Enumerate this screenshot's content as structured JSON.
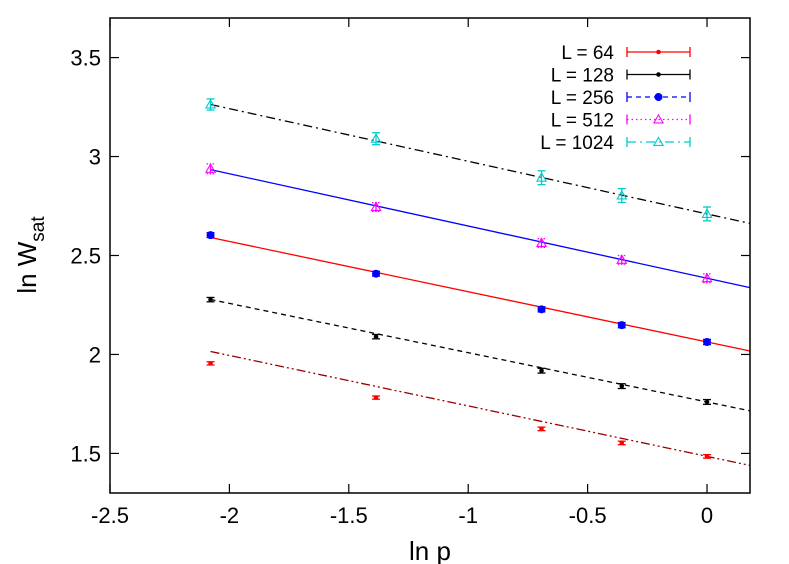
{
  "chart_data": {
    "type": "scatter",
    "xlabel": "ln p",
    "ylabel": {
      "main": "ln W",
      "sub": "sat"
    },
    "xlim": [
      -2.5,
      0.18
    ],
    "ylim": [
      1.3,
      3.7
    ],
    "xticks": [
      -2.5,
      -2,
      -1.5,
      -1,
      -0.5,
      0
    ],
    "xtick_labels": [
      "-2.5",
      "-2",
      "-1.5",
      "-1",
      "-0.5",
      "0"
    ],
    "yticks": [
      1.5,
      2,
      2.5,
      3,
      3.5
    ],
    "ytick_labels": [
      "1.5",
      "2",
      "2.5",
      "3",
      "3.5"
    ],
    "legend_position": "top-right",
    "x": [
      -2.079,
      -1.386,
      -0.693,
      -0.357,
      0.0
    ],
    "series": [
      {
        "name": "L = 64",
        "color": "#ff0000",
        "marker": "small-dot",
        "line": "solid",
        "y": [
          1.955,
          1.782,
          1.624,
          1.553,
          1.485
        ],
        "err": [
          0.008,
          0.008,
          0.009,
          0.009,
          0.009
        ]
      },
      {
        "name": "L = 128",
        "color": "#000000",
        "marker": "small-dot",
        "line": "solid",
        "y": [
          2.277,
          2.09,
          1.918,
          1.84,
          1.76
        ],
        "err": [
          0.011,
          0.011,
          0.012,
          0.012,
          0.012
        ]
      },
      {
        "name": "L = 256",
        "color": "#0000ff",
        "marker": "circle",
        "line": "dashed",
        "y": [
          2.603,
          2.408,
          2.228,
          2.148,
          2.063
        ],
        "err": [
          0.012,
          0.012,
          0.013,
          0.013,
          0.013
        ]
      },
      {
        "name": "L = 512",
        "color": "#ff00ff",
        "marker": "triangle",
        "line": "dotted",
        "y": [
          2.938,
          2.745,
          2.563,
          2.478,
          2.385
        ],
        "err": [
          0.025,
          0.022,
          0.022,
          0.022,
          0.022
        ]
      },
      {
        "name": "L = 1024",
        "color": "#00cccc",
        "marker": "triangle",
        "line": "dashdot",
        "y": [
          3.263,
          3.09,
          2.893,
          2.803,
          2.71
        ],
        "err": [
          0.028,
          0.03,
          0.035,
          0.035,
          0.035
        ]
      }
    ],
    "fit_lines": [
      {
        "fits": "L = 64",
        "color": "#990000",
        "dash": "dashdotdot",
        "intercept": 1.485,
        "slope": -0.255
      },
      {
        "fits": "L = 128",
        "color": "#000000",
        "dash": "dashed",
        "intercept": 1.76,
        "slope": -0.249
      },
      {
        "fits": "L = 256",
        "color": "#ff0000",
        "dash": "solid",
        "intercept": 2.063,
        "slope": -0.254
      },
      {
        "fits": "L = 512",
        "color": "#0000ff",
        "dash": "solid",
        "intercept": 2.385,
        "slope": -0.264
      },
      {
        "fits": "L = 1024",
        "color": "#000000",
        "dash": "dashdot",
        "intercept": 2.71,
        "slope": -0.266
      }
    ]
  }
}
